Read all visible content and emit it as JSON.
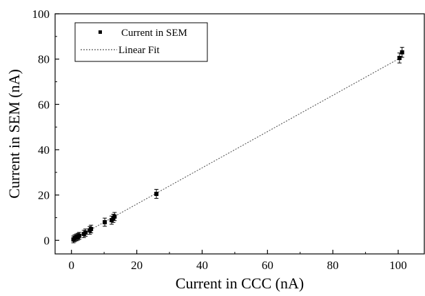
{
  "chart_data": {
    "type": "scatter",
    "title": "",
    "xlabel": "Current in CCC (nA)",
    "ylabel": "Current in SEM (nA)",
    "xlim": [
      -5,
      108
    ],
    "ylim": [
      -6,
      100
    ],
    "x_ticks": [
      0,
      20,
      40,
      60,
      80,
      100
    ],
    "y_ticks": [
      0,
      20,
      40,
      60,
      80,
      100
    ],
    "grid": false,
    "legend_position": "top-left",
    "series": [
      {
        "name": "Current in SEM",
        "mark": "square",
        "color": "#000000",
        "points": [
          {
            "x": 0.6,
            "y": 0.4,
            "err": 1.5
          },
          {
            "x": 1.0,
            "y": 0.9,
            "err": 1.5
          },
          {
            "x": 1.5,
            "y": 1.3,
            "err": 1.5
          },
          {
            "x": 2.0,
            "y": 1.6,
            "err": 1.5
          },
          {
            "x": 2.4,
            "y": 2.0,
            "err": 1.5
          },
          {
            "x": 3.8,
            "y": 2.8,
            "err": 1.6
          },
          {
            "x": 4.3,
            "y": 3.4,
            "err": 1.6
          },
          {
            "x": 5.6,
            "y": 4.4,
            "err": 1.7
          },
          {
            "x": 6.0,
            "y": 5.0,
            "err": 1.7
          },
          {
            "x": 10.2,
            "y": 8.0,
            "err": 1.8
          },
          {
            "x": 12.3,
            "y": 8.9,
            "err": 1.8
          },
          {
            "x": 12.8,
            "y": 9.7,
            "err": 1.8
          },
          {
            "x": 13.2,
            "y": 10.5,
            "err": 1.8
          },
          {
            "x": 26.0,
            "y": 20.5,
            "err": 2.0
          },
          {
            "x": 100.4,
            "y": 80.5,
            "err": 2.2
          },
          {
            "x": 101.2,
            "y": 83.0,
            "err": 2.2
          }
        ]
      },
      {
        "name": "Linear Fit",
        "mark": "dotted-line",
        "color": "#555555",
        "x": [
          0,
          101.5
        ],
        "y": [
          0.0,
          81.2
        ]
      }
    ]
  }
}
